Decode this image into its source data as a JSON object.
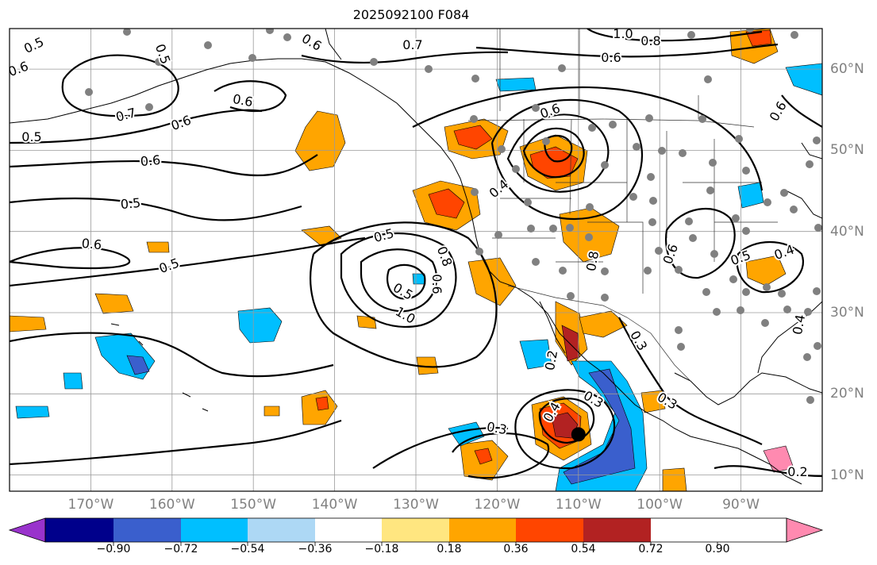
{
  "title": "2025092100 F084",
  "map": {
    "projection": "plate-carree",
    "extent": {
      "lon_min": -180,
      "lon_max": -80,
      "lat_min": 8,
      "lat_max": 65
    },
    "longitude_labels": [
      "170°W",
      "160°W",
      "150°W",
      "140°W",
      "130°W",
      "120°W",
      "110°W",
      "100°W",
      "90°W"
    ],
    "latitude_labels": [
      "60°N",
      "50°N",
      "40°N",
      "30°N",
      "20°N",
      "10°N"
    ],
    "gridlines": true,
    "features": [
      "coastlines",
      "country-borders",
      "state-borders",
      "station-dots",
      "contour-lines",
      "filled-anomalies"
    ],
    "marker": {
      "name": "storm-center",
      "lon": -110,
      "lat": 15
    },
    "contour_labels": [
      "0.5",
      "0.6",
      "0.7",
      "0.6",
      "0.5",
      "0.6",
      "0.5",
      "0.6",
      "0.5",
      "0.6",
      "0.5",
      "0.6",
      "0.7",
      "0.6",
      "0.4",
      "0.5",
      "1.0",
      "0.8",
      "0.6",
      "0.8",
      "0.6",
      "0.5",
      "1.0",
      "0.8",
      "0.3",
      "0.2",
      "0.3",
      "0.4",
      "0.3",
      "0.3",
      "0.2",
      "0.6",
      "0.5",
      "0.6",
      "0.4",
      "0.4",
      "0.2"
    ]
  },
  "colorbar": {
    "colors": [
      "#9933cc",
      "#00008b",
      "#3a5fcd",
      "#00bfff",
      "#add8f5",
      "#ffffff",
      "#ffe680",
      "#ffa500",
      "#ff4500",
      "#b22222",
      "#ff8ab0"
    ],
    "ticks": [
      "−0.90",
      "−0.72",
      "−0.54",
      "−0.36",
      "−0.18",
      "0.18",
      "0.36",
      "0.54",
      "0.72",
      "0.90"
    ]
  }
}
